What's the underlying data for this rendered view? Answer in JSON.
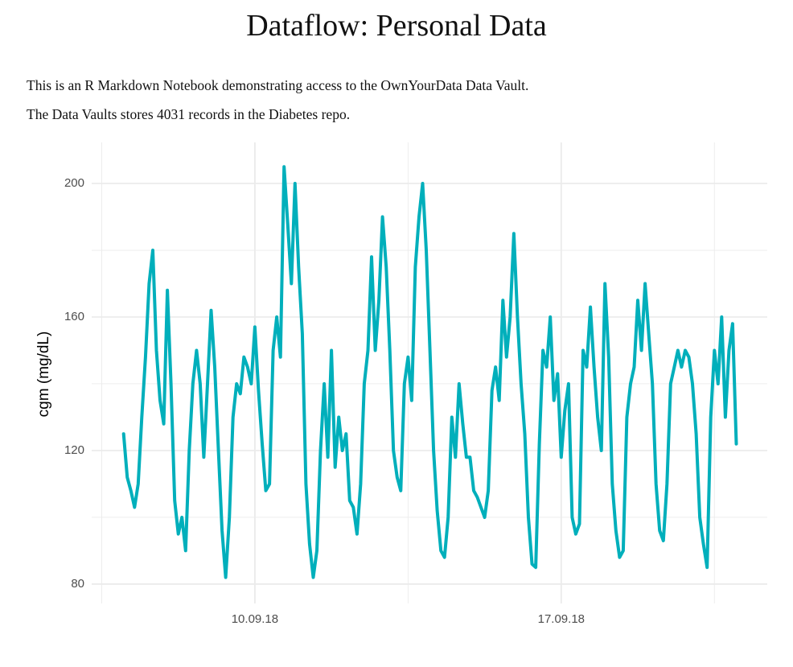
{
  "header": {
    "title": "Dataflow: Personal Data"
  },
  "paragraphs": [
    "This is an R Markdown Notebook demonstrating access to the OwnYourData Data Vault.",
    "The Data Vaults stores 4031 records in the Diabetes repo."
  ],
  "chart_data": {
    "type": "line",
    "y_label": "cgm (mg/dL)",
    "color": "#00AFBB",
    "grid": true,
    "xlim": [
      "2018-09-06T06:30",
      "2018-09-21T17:00"
    ],
    "xticks": [
      {
        "value": "2018-09-10T00:00",
        "label": "10.09.18"
      },
      {
        "value": "2018-09-17T00:00",
        "label": "17.09.18"
      }
    ],
    "xminor": [
      "2018-09-06T12:00",
      "2018-09-13T12:00",
      "2018-09-20T12:00"
    ],
    "ylim": [
      74.2,
      212.3
    ],
    "yticks": [
      80,
      120,
      160,
      200
    ],
    "yminor": [
      100,
      140,
      180
    ],
    "x": [
      "2018-09-07T00:00",
      "2018-09-07T02:00",
      "2018-09-07T04:00",
      "2018-09-07T06:00",
      "2018-09-07T08:00",
      "2018-09-07T10:00",
      "2018-09-07T12:00",
      "2018-09-07T14:00",
      "2018-09-07T16:00",
      "2018-09-07T18:00",
      "2018-09-07T20:00",
      "2018-09-07T22:00",
      "2018-09-08T00:00",
      "2018-09-08T02:00",
      "2018-09-08T04:00",
      "2018-09-08T06:00",
      "2018-09-08T08:00",
      "2018-09-08T10:00",
      "2018-09-08T12:00",
      "2018-09-08T14:00",
      "2018-09-08T16:00",
      "2018-09-08T18:00",
      "2018-09-08T20:00",
      "2018-09-08T22:00",
      "2018-09-09T00:00",
      "2018-09-09T02:00",
      "2018-09-09T04:00",
      "2018-09-09T06:00",
      "2018-09-09T08:00",
      "2018-09-09T10:00",
      "2018-09-09T12:00",
      "2018-09-09T14:00",
      "2018-09-09T16:00",
      "2018-09-09T18:00",
      "2018-09-09T20:00",
      "2018-09-09T22:00",
      "2018-09-10T00:00",
      "2018-09-10T02:00",
      "2018-09-10T04:00",
      "2018-09-10T06:00",
      "2018-09-10T08:00",
      "2018-09-10T10:00",
      "2018-09-10T12:00",
      "2018-09-10T14:00",
      "2018-09-10T16:00",
      "2018-09-10T18:00",
      "2018-09-10T20:00",
      "2018-09-10T22:00",
      "2018-09-11T00:00",
      "2018-09-11T02:00",
      "2018-09-11T04:00",
      "2018-09-11T06:00",
      "2018-09-11T08:00",
      "2018-09-11T10:00",
      "2018-09-11T12:00",
      "2018-09-11T14:00",
      "2018-09-11T16:00",
      "2018-09-11T18:00",
      "2018-09-11T20:00",
      "2018-09-11T22:00",
      "2018-09-12T00:00",
      "2018-09-12T02:00",
      "2018-09-12T04:00",
      "2018-09-12T06:00",
      "2018-09-12T08:00",
      "2018-09-12T10:00",
      "2018-09-12T12:00",
      "2018-09-12T14:00",
      "2018-09-12T16:00",
      "2018-09-12T18:00",
      "2018-09-12T20:00",
      "2018-09-12T22:00",
      "2018-09-13T00:00",
      "2018-09-13T02:00",
      "2018-09-13T04:00",
      "2018-09-13T06:00",
      "2018-09-13T08:00",
      "2018-09-13T10:00",
      "2018-09-13T12:00",
      "2018-09-13T14:00",
      "2018-09-13T16:00",
      "2018-09-13T18:00",
      "2018-09-13T20:00",
      "2018-09-13T22:00",
      "2018-09-14T00:00",
      "2018-09-14T02:00",
      "2018-09-14T04:00",
      "2018-09-14T06:00",
      "2018-09-14T08:00",
      "2018-09-14T10:00",
      "2018-09-14T12:00",
      "2018-09-14T14:00",
      "2018-09-14T16:00",
      "2018-09-14T18:00",
      "2018-09-14T20:00",
      "2018-09-14T22:00",
      "2018-09-15T00:00",
      "2018-09-15T02:00",
      "2018-09-15T04:00",
      "2018-09-15T06:00",
      "2018-09-15T08:00",
      "2018-09-15T10:00",
      "2018-09-15T12:00",
      "2018-09-15T14:00",
      "2018-09-15T16:00",
      "2018-09-15T18:00",
      "2018-09-15T20:00",
      "2018-09-15T22:00",
      "2018-09-16T00:00",
      "2018-09-16T02:00",
      "2018-09-16T04:00",
      "2018-09-16T06:00",
      "2018-09-16T08:00",
      "2018-09-16T10:00",
      "2018-09-16T12:00",
      "2018-09-16T14:00",
      "2018-09-16T16:00",
      "2018-09-16T18:00",
      "2018-09-16T20:00",
      "2018-09-16T22:00",
      "2018-09-17T00:00",
      "2018-09-17T02:00",
      "2018-09-17T04:00",
      "2018-09-17T06:00",
      "2018-09-17T08:00",
      "2018-09-17T10:00",
      "2018-09-17T12:00",
      "2018-09-17T14:00",
      "2018-09-17T16:00",
      "2018-09-17T18:00",
      "2018-09-17T20:00",
      "2018-09-17T22:00",
      "2018-09-18T00:00",
      "2018-09-18T02:00",
      "2018-09-18T04:00",
      "2018-09-18T06:00",
      "2018-09-18T08:00",
      "2018-09-18T10:00",
      "2018-09-18T12:00",
      "2018-09-18T14:00",
      "2018-09-18T16:00",
      "2018-09-18T18:00",
      "2018-09-18T20:00",
      "2018-09-18T22:00",
      "2018-09-19T00:00",
      "2018-09-19T02:00",
      "2018-09-19T04:00",
      "2018-09-19T06:00",
      "2018-09-19T08:00",
      "2018-09-19T10:00",
      "2018-09-19T12:00",
      "2018-09-19T14:00",
      "2018-09-19T16:00",
      "2018-09-19T18:00",
      "2018-09-19T20:00",
      "2018-09-19T22:00",
      "2018-09-20T00:00",
      "2018-09-20T02:00",
      "2018-09-20T04:00",
      "2018-09-20T06:00",
      "2018-09-20T08:00",
      "2018-09-20T10:00",
      "2018-09-20T12:00",
      "2018-09-20T14:00",
      "2018-09-20T16:00",
      "2018-09-20T18:00",
      "2018-09-20T20:00",
      "2018-09-20T22:00",
      "2018-09-21T00:00"
    ],
    "values": [
      125,
      112,
      108,
      103,
      110,
      130,
      148,
      170,
      180,
      150,
      135,
      128,
      168,
      140,
      105,
      95,
      100,
      90,
      120,
      140,
      150,
      140,
      118,
      140,
      162,
      145,
      120,
      96,
      82,
      100,
      130,
      140,
      137,
      148,
      145,
      140,
      157,
      138,
      122,
      108,
      110,
      150,
      160,
      148,
      205,
      188,
      170,
      200,
      175,
      155,
      110,
      92,
      82,
      90,
      120,
      140,
      118,
      150,
      115,
      130,
      120,
      125,
      105,
      103,
      95,
      110,
      140,
      150,
      178,
      150,
      165,
      190,
      175,
      150,
      120,
      112,
      108,
      140,
      148,
      135,
      175,
      190,
      200,
      180,
      150,
      120,
      102,
      90,
      88,
      100,
      130,
      118,
      140,
      128,
      118,
      118,
      108,
      106,
      103,
      100,
      108,
      138,
      145,
      135,
      165,
      148,
      160,
      185,
      160,
      140,
      125,
      100,
      86,
      85,
      122,
      150,
      145,
      160,
      135,
      143,
      118,
      132,
      140,
      100,
      95,
      98,
      150,
      145,
      163,
      145,
      130,
      120,
      170,
      148,
      110,
      96,
      88,
      90,
      130,
      140,
      145,
      165,
      150,
      170,
      155,
      140,
      110,
      96,
      93,
      110,
      140,
      145,
      150,
      145,
      150,
      148,
      140,
      125,
      100,
      92,
      85,
      130,
      150,
      140,
      160,
      130,
      150,
      158,
      122
    ]
  }
}
